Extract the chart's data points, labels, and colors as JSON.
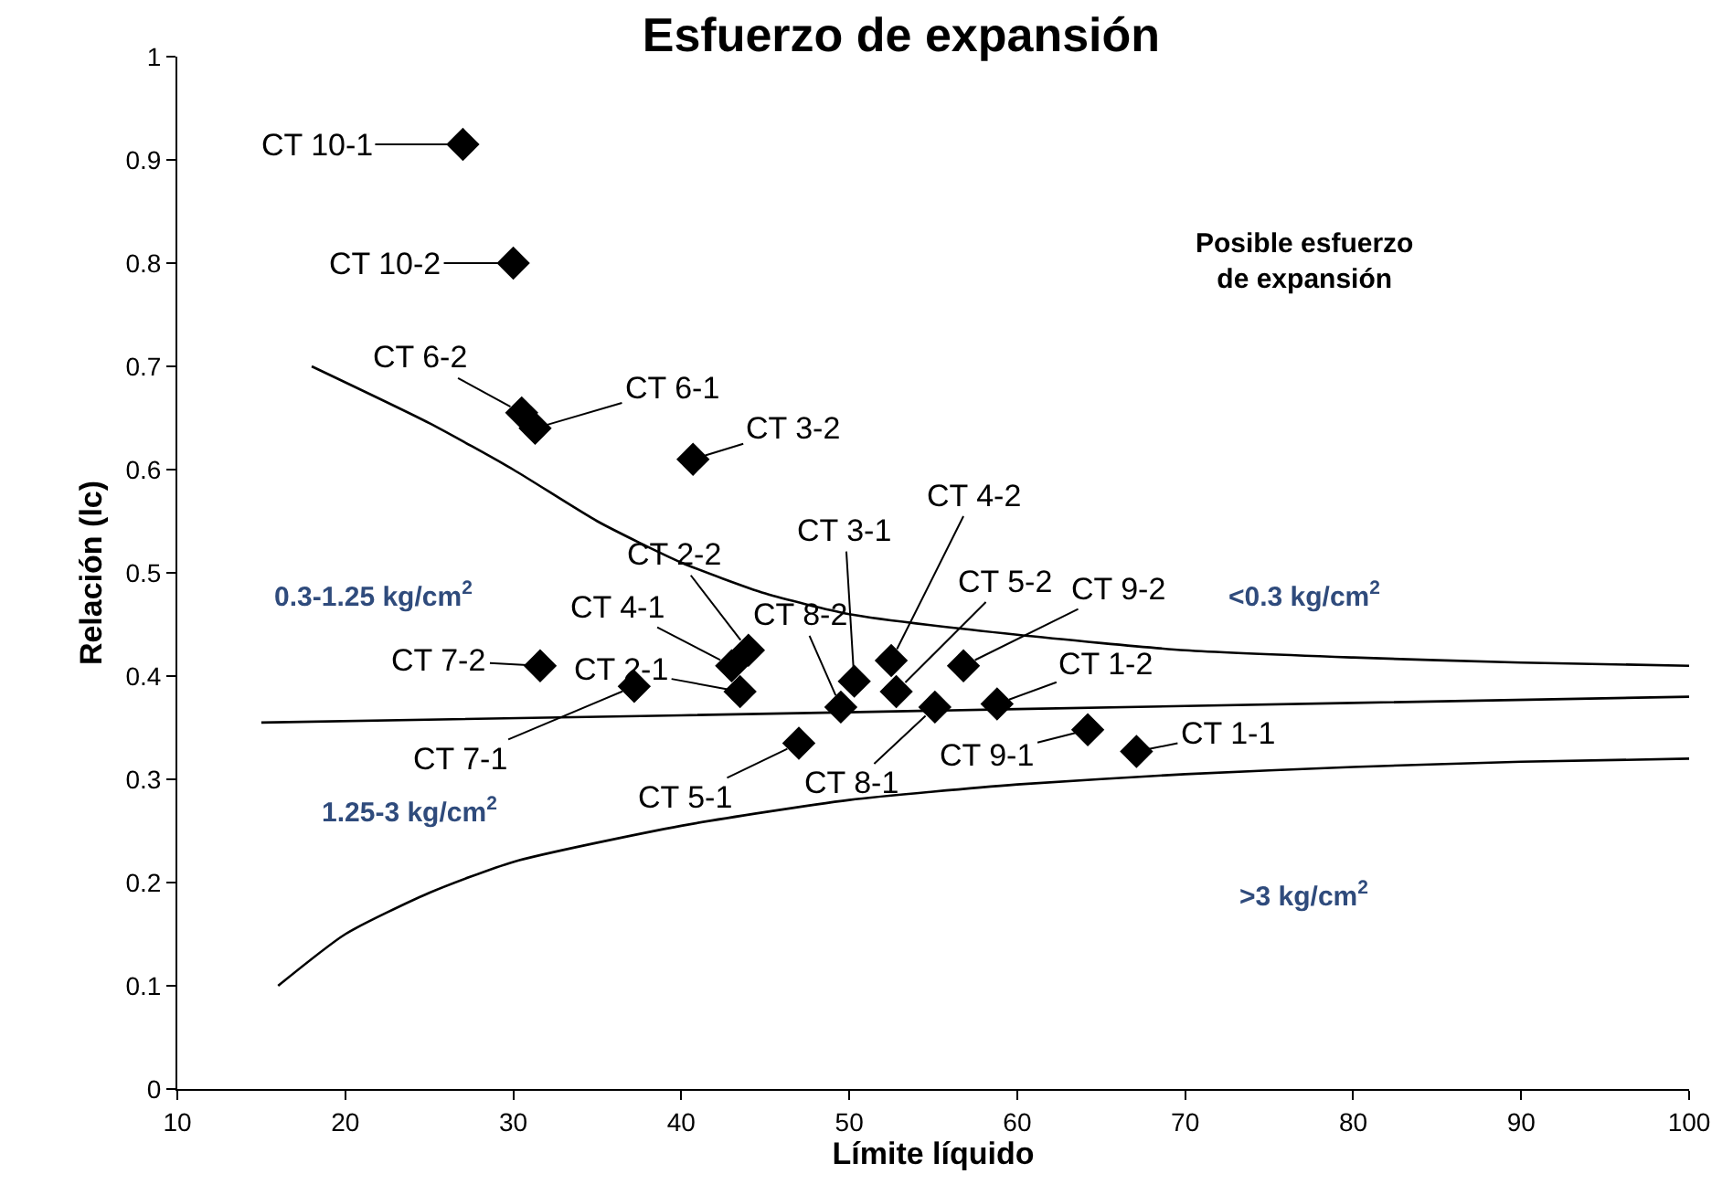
{
  "chart_data": {
    "type": "scatter",
    "title": "Esfuerzo de expansión",
    "xlabel": "Límite líquido",
    "ylabel": "Relación (lc)",
    "xlim": [
      10,
      100
    ],
    "xticks": [
      10,
      20,
      30,
      40,
      50,
      60,
      70,
      80,
      90,
      100
    ],
    "ylim": [
      0,
      1
    ],
    "yticks": [
      0,
      0.1,
      0.2,
      0.3,
      0.4,
      0.5,
      0.6,
      0.7,
      0.8,
      0.9,
      1
    ],
    "marker": "diamond",
    "series": [
      {
        "color": "#000000",
        "x": [
          27,
          30,
          30.5,
          31.3,
          40.7,
          31.6,
          37.2,
          43.0,
          44.0,
          43.5,
          47.0,
          49.5,
          50.3,
          52.5,
          52.8,
          55.1,
          56.8,
          58.8,
          64.2,
          67.1
        ],
        "values": [
          0.915,
          0.8,
          0.655,
          0.64,
          0.61,
          0.41,
          0.39,
          0.41,
          0.425,
          0.385,
          0.335,
          0.37,
          0.395,
          0.415,
          0.385,
          0.37,
          0.41,
          0.373,
          0.348,
          0.327
        ]
      },
      {
        "type": "line",
        "color": "#000000",
        "marker": "none",
        "x": [
          18,
          25,
          30,
          35,
          40,
          45,
          50,
          60,
          70,
          80,
          90,
          100
        ],
        "values": [
          0.7,
          0.645,
          0.6,
          0.55,
          0.51,
          0.48,
          0.46,
          0.44,
          0.425,
          0.418,
          0.413,
          0.41
        ]
      },
      {
        "type": "line",
        "color": "#000000",
        "marker": "none",
        "x": [
          15,
          40,
          60,
          80,
          100
        ],
        "values": [
          0.355,
          0.362,
          0.368,
          0.374,
          0.38
        ]
      },
      {
        "type": "line",
        "color": "#000000",
        "marker": "none",
        "x": [
          16,
          20,
          25,
          30,
          40,
          50,
          60,
          70,
          80,
          90,
          100
        ],
        "values": [
          0.1,
          0.15,
          0.19,
          0.22,
          0.255,
          0.28,
          0.295,
          0.305,
          0.312,
          0.317,
          0.32
        ]
      }
    ],
    "annotations": [
      "Posible esfuerzo\nde expansión",
      "0.3-1.25 kg/cm$^{2}$",
      "<0.3 kg/cm$^{2}$",
      "1.25-3 kg/cm$^{2}$",
      ">3 kg/cm$^{2}$",
      {
        "text": "CT 10-1",
        "x": 27,
        "y": 0.915
      },
      {
        "text": "CT 10-2",
        "x": 30,
        "y": 0.8
      },
      {
        "text": "CT 6-2",
        "x": 30.5,
        "y": 0.655
      },
      {
        "text": "CT 6-1",
        "x": 31.3,
        "y": 0.64
      },
      {
        "text": "CT 3-2",
        "x": 40.7,
        "y": 0.61
      },
      {
        "text": "CT 7-2",
        "x": 31.6,
        "y": 0.41
      },
      {
        "text": "CT 7-1",
        "x": 37.2,
        "y": 0.39
      },
      {
        "text": "CT 4-1",
        "x": 43.0,
        "y": 0.41
      },
      {
        "text": "CT 2-2",
        "x": 44.0,
        "y": 0.425
      },
      {
        "text": "CT 2-1",
        "x": 43.5,
        "y": 0.385
      },
      {
        "text": "CT 5-1",
        "x": 47.0,
        "y": 0.335
      },
      {
        "text": "CT 8-2",
        "x": 49.5,
        "y": 0.37
      },
      {
        "text": "CT 3-1",
        "x": 50.3,
        "y": 0.395
      },
      {
        "text": "CT 4-2",
        "x": 52.5,
        "y": 0.415
      },
      {
        "text": "CT 5-2",
        "x": 52.8,
        "y": 0.385
      },
      {
        "text": "CT 8-1",
        "x": 55.1,
        "y": 0.37
      },
      {
        "text": "CT 9-2",
        "x": 56.8,
        "y": 0.41
      },
      {
        "text": "CT 1-2",
        "x": 58.8,
        "y": 0.373
      },
      {
        "text": "CT 9-1",
        "x": 64.2,
        "y": 0.348
      },
      {
        "text": "CT 1-1",
        "x": 67.1,
        "y": 0.327
      }
    ]
  }
}
